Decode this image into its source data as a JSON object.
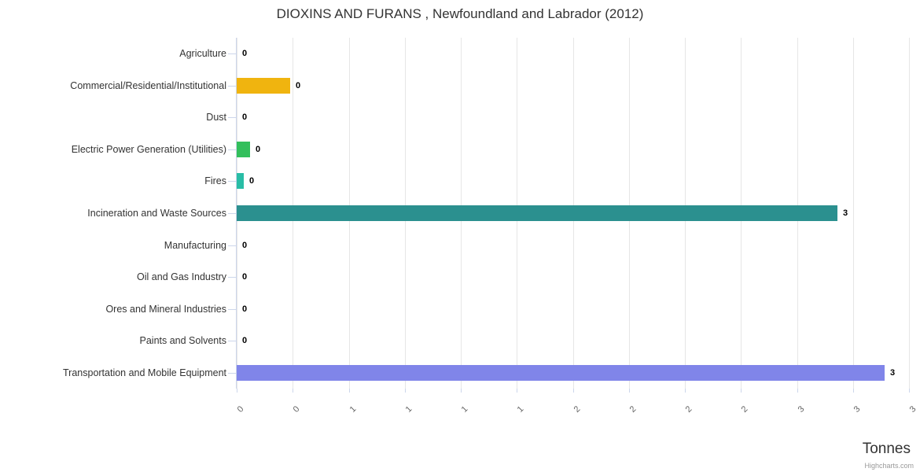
{
  "title": "DIOXINS AND FURANS , Newfoundland and Labrador (2012)",
  "credits": "Highcharts.com",
  "chart_data": {
    "type": "bar",
    "orientation": "horizontal",
    "title": "DIOXINS AND FURANS , Newfoundland and Labrador (2012)",
    "xlabel": "Tonnes",
    "ylabel": "",
    "categories": [
      "Agriculture",
      "Commercial/Residential/Institutional",
      "Dust",
      "Electric Power Generation (Utilities)",
      "Fires",
      "Incineration and Waste Sources",
      "Manufacturing",
      "Oil and Gas Industry",
      "Ores and Mineral Industries",
      "Paints and Solvents",
      "Transportation and Mobile Equipment"
    ],
    "values": [
      0,
      0.24,
      0,
      0.06,
      0.03,
      2.68,
      0,
      0,
      0,
      0,
      2.89
    ],
    "data_labels": [
      "0",
      "0",
      "0",
      "0",
      "0",
      "3",
      "0",
      "0",
      "0",
      "0",
      "3"
    ],
    "colors": [
      null,
      "#F0B40F",
      null,
      "#33BF5C",
      "#29BDA6",
      "#2B908F",
      null,
      null,
      null,
      null,
      "#8085E9"
    ],
    "xlim": [
      0,
      3
    ],
    "x_tick_labels": [
      "0",
      "0",
      "1",
      "1",
      "1",
      "1",
      "2",
      "2",
      "2",
      "2",
      "3",
      "3",
      "3"
    ],
    "grid": true,
    "legend_position": "none"
  }
}
